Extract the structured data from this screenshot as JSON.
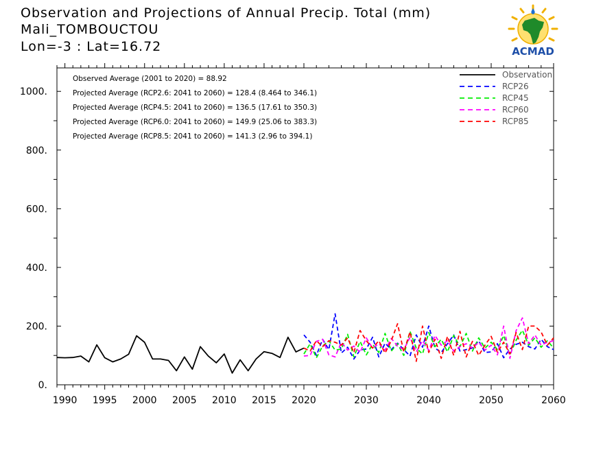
{
  "titles": {
    "line1": "Observation and Projections of Annual Precip. Total (mm)",
    "line2": "Mali_TOMBOUCTOU",
    "line3": "Lon=-3 : Lat=16.72"
  },
  "logo": {
    "text": "ACMAD",
    "icon": "acmad-africa-sun-logo"
  },
  "chart_data": {
    "type": "line",
    "xlim": [
      1989,
      2060
    ],
    "ylim": [
      0,
      1080
    ],
    "x_ticks": [
      1990,
      1995,
      2000,
      2005,
      2010,
      2015,
      2020,
      2030,
      2040,
      2050,
      2060
    ],
    "x_tick_labels": [
      "1990",
      "1995",
      "2000",
      "2005",
      "2010",
      "2015",
      "2020",
      "2030",
      "2040",
      "2050",
      "2060"
    ],
    "y_ticks": [
      0,
      200,
      400,
      600,
      800,
      1000
    ],
    "y_tick_labels": [
      "0.",
      "200.",
      "400.",
      "600.",
      "800.",
      "1000."
    ],
    "annotations": [
      "Observed Average (2001 to 2020) = 88.92",
      "Projected Average (RCP2.6: 2041 to 2060) = 128.4 (8.464 to 346.1)",
      "Projected Average (RCP4.5: 2041 to 2060) = 136.5 (17.61 to 350.3)",
      "Projected Average (RCP6.0: 2041 to 2060) = 149.9 (25.06 to 383.3)",
      "Projected Average (RCP8.5: 2041 to 2060) = 141.3 (2.96 to 394.1)"
    ],
    "legend_position": "top-right",
    "series": [
      {
        "name": "Observation",
        "color": "#000000",
        "dash": "solid",
        "x": [
          1989,
          1990,
          1991,
          1992,
          1993,
          1994,
          1995,
          1996,
          1997,
          1998,
          1999,
          2000,
          2001,
          2002,
          2003,
          2004,
          2005,
          2006,
          2007,
          2008,
          2009,
          2010,
          2011,
          2012,
          2013,
          2014,
          2015,
          2016,
          2017,
          2018,
          2019,
          2020
        ],
        "y": [
          93,
          92,
          93,
          98,
          78,
          136,
          92,
          78,
          88,
          104,
          167,
          145,
          88,
          88,
          83,
          48,
          95,
          53,
          130,
          98,
          75,
          105,
          40,
          85,
          48,
          88,
          113,
          107,
          93,
          162,
          112,
          125
        ]
      },
      {
        "name": "RCP26",
        "color": "#0000ff",
        "dash": "dashed",
        "x": [
          2020,
          2021,
          2022,
          2023,
          2024,
          2025,
          2026,
          2027,
          2028,
          2029,
          2030,
          2031,
          2032,
          2033,
          2034,
          2035,
          2036,
          2037,
          2038,
          2039,
          2040,
          2041,
          2042,
          2043,
          2044,
          2045,
          2046,
          2047,
          2048,
          2049,
          2050,
          2051,
          2052,
          2053,
          2054,
          2055,
          2056,
          2057,
          2058,
          2059,
          2060
        ],
        "y": [
          170,
          145,
          100,
          155,
          120,
          242,
          108,
          128,
          88,
          118,
          122,
          162,
          95,
          142,
          120,
          142,
          120,
          98,
          170,
          128,
          200,
          125,
          110,
          140,
          170,
          115,
          120,
          125,
          150,
          110,
          112,
          140,
          92,
          122,
          138,
          145,
          130,
          122,
          155,
          130,
          120
        ]
      },
      {
        "name": "RCP45",
        "color": "#00ee00",
        "dash": "dashed",
        "x": [
          2020,
          2021,
          2022,
          2023,
          2024,
          2025,
          2026,
          2027,
          2028,
          2029,
          2030,
          2031,
          2032,
          2033,
          2034,
          2035,
          2036,
          2037,
          2038,
          2039,
          2040,
          2041,
          2042,
          2043,
          2044,
          2045,
          2046,
          2047,
          2048,
          2049,
          2050,
          2051,
          2052,
          2053,
          2054,
          2055,
          2056,
          2057,
          2058,
          2059,
          2060
        ],
        "y": [
          105,
          140,
          92,
          132,
          150,
          118,
          122,
          172,
          95,
          148,
          102,
          138,
          110,
          175,
          115,
          140,
          100,
          182,
          125,
          105,
          178,
          130,
          155,
          112,
          168,
          130,
          175,
          115,
          160,
          125,
          145,
          120,
          168,
          102,
          152,
          186,
          135,
          160,
          128,
          150,
          125
        ]
      },
      {
        "name": "RCP60",
        "color": "#ff00ff",
        "dash": "dashed",
        "x": [
          2020,
          2021,
          2022,
          2023,
          2024,
          2025,
          2026,
          2027,
          2028,
          2029,
          2030,
          2031,
          2032,
          2033,
          2034,
          2035,
          2036,
          2037,
          2038,
          2039,
          2040,
          2041,
          2042,
          2043,
          2044,
          2045,
          2046,
          2047,
          2048,
          2049,
          2050,
          2051,
          2052,
          2053,
          2054,
          2055,
          2056,
          2057,
          2058,
          2059,
          2060
        ],
        "y": [
          98,
          100,
          148,
          155,
          102,
          95,
          145,
          118,
          132,
          110,
          160,
          125,
          140,
          118,
          158,
          132,
          120,
          162,
          112,
          150,
          118,
          168,
          135,
          150,
          115,
          130,
          140,
          125,
          145,
          118,
          135,
          102,
          200,
          90,
          185,
          228,
          140,
          170,
          135,
          145,
          150
        ]
      },
      {
        "name": "RCP85",
        "color": "#ff0000",
        "dash": "dashed",
        "x": [
          2020,
          2021,
          2022,
          2023,
          2024,
          2025,
          2026,
          2027,
          2028,
          2029,
          2030,
          2031,
          2032,
          2033,
          2034,
          2035,
          2036,
          2037,
          2038,
          2039,
          2040,
          2041,
          2042,
          2043,
          2044,
          2045,
          2046,
          2047,
          2048,
          2049,
          2050,
          2051,
          2052,
          2053,
          2054,
          2055,
          2056,
          2057,
          2058,
          2059,
          2060
        ],
        "y": [
          125,
          115,
          150,
          130,
          150,
          145,
          135,
          160,
          110,
          185,
          150,
          125,
          150,
          108,
          150,
          208,
          112,
          180,
          80,
          200,
          110,
          155,
          90,
          165,
          100,
          182,
          95,
          148,
          100,
          135,
          165,
          110,
          145,
          105,
          178,
          120,
          200,
          200,
          180,
          135,
          160
        ]
      }
    ]
  }
}
